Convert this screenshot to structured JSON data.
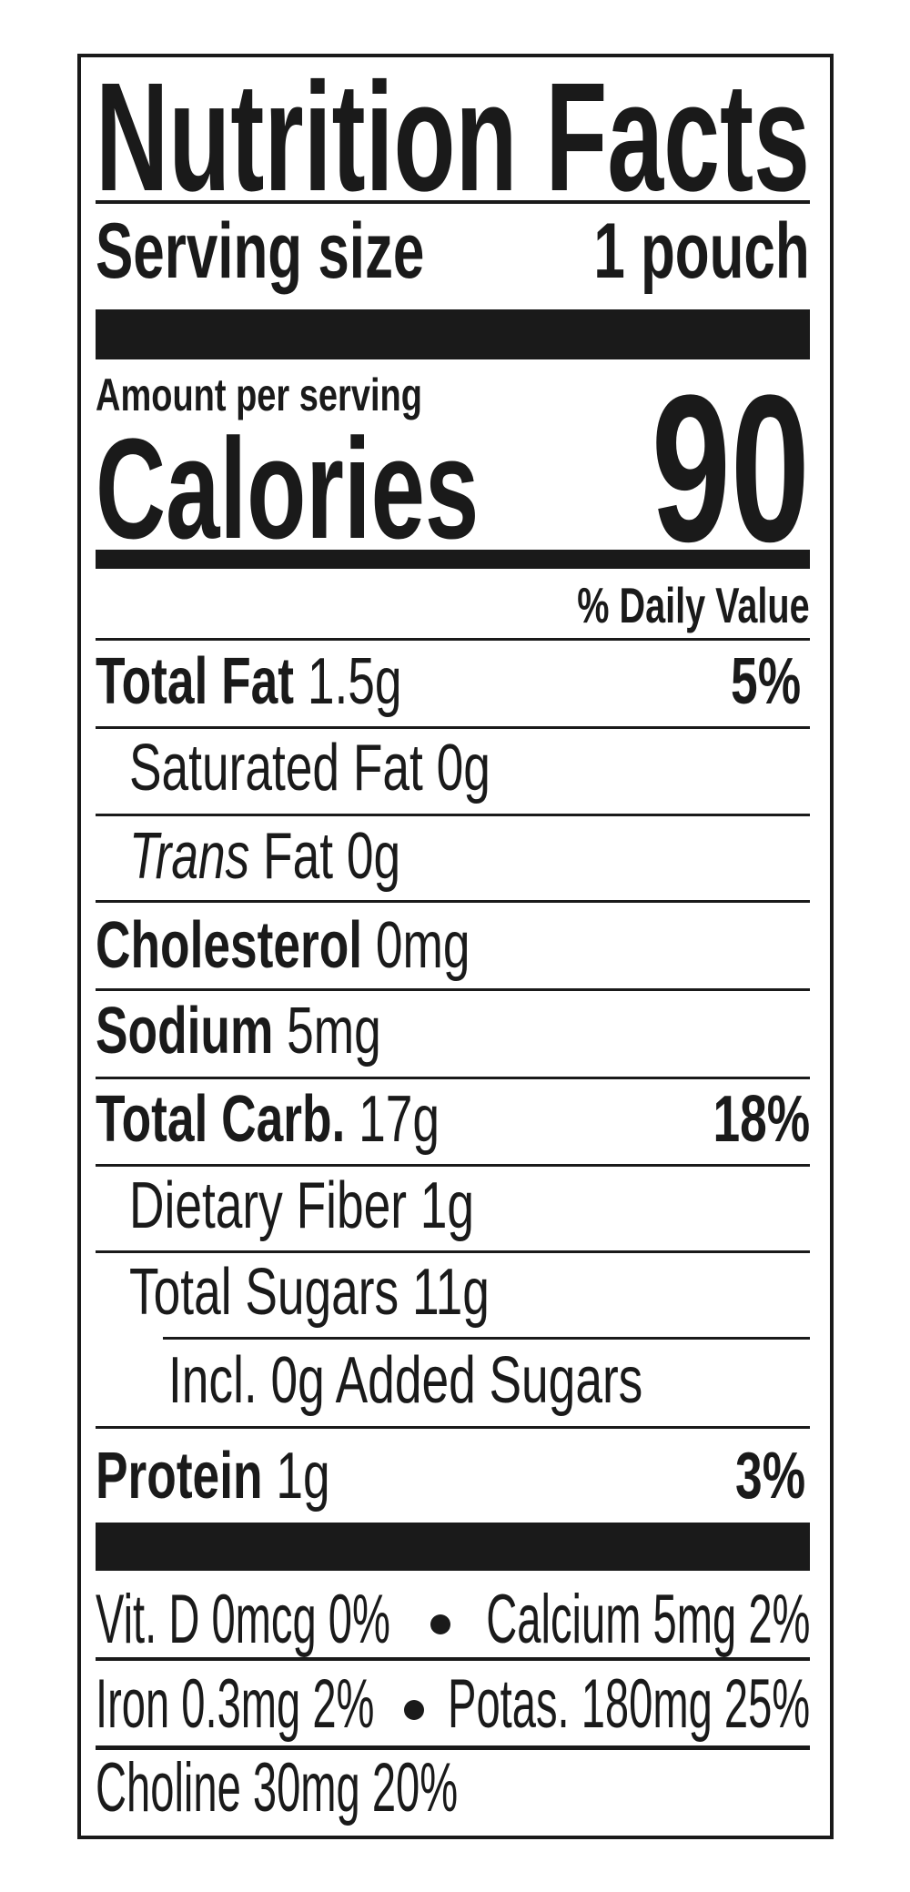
{
  "title": "Nutrition Facts",
  "serving": {
    "label": "Serving size",
    "value": "1 pouch"
  },
  "calories": {
    "amount_label": "Amount per serving",
    "label": "Calories",
    "value": "90"
  },
  "daily_value_header": "% Daily Value",
  "nutrients": [
    {
      "name": "Total Fat",
      "amount": "1.5g",
      "dv": "5%"
    },
    {
      "name": "Saturated Fat 0g"
    },
    {
      "name_italic": "Trans",
      "name": "Fat 0g"
    },
    {
      "name": "Cholesterol",
      "amount": "0mg"
    },
    {
      "name": "Sodium",
      "amount": "5mg"
    },
    {
      "name": "Total Carb.",
      "amount": "17g",
      "dv": "18%"
    },
    {
      "name": "Dietary Fiber 1g"
    },
    {
      "name": "Total Sugars 11g"
    },
    {
      "name": "Incl. 0g Added Sugars"
    },
    {
      "name": "Protein",
      "amount": "1g",
      "dv": "3%"
    }
  ],
  "micronutrients": [
    {
      "left": "Vit. D 0mcg 0%",
      "right": "Calcium 5mg 2%"
    },
    {
      "left": "Iron 0.3mg 2%",
      "right": "Potas. 180mg 25%"
    },
    {
      "left": "Choline 30mg 20%"
    }
  ]
}
